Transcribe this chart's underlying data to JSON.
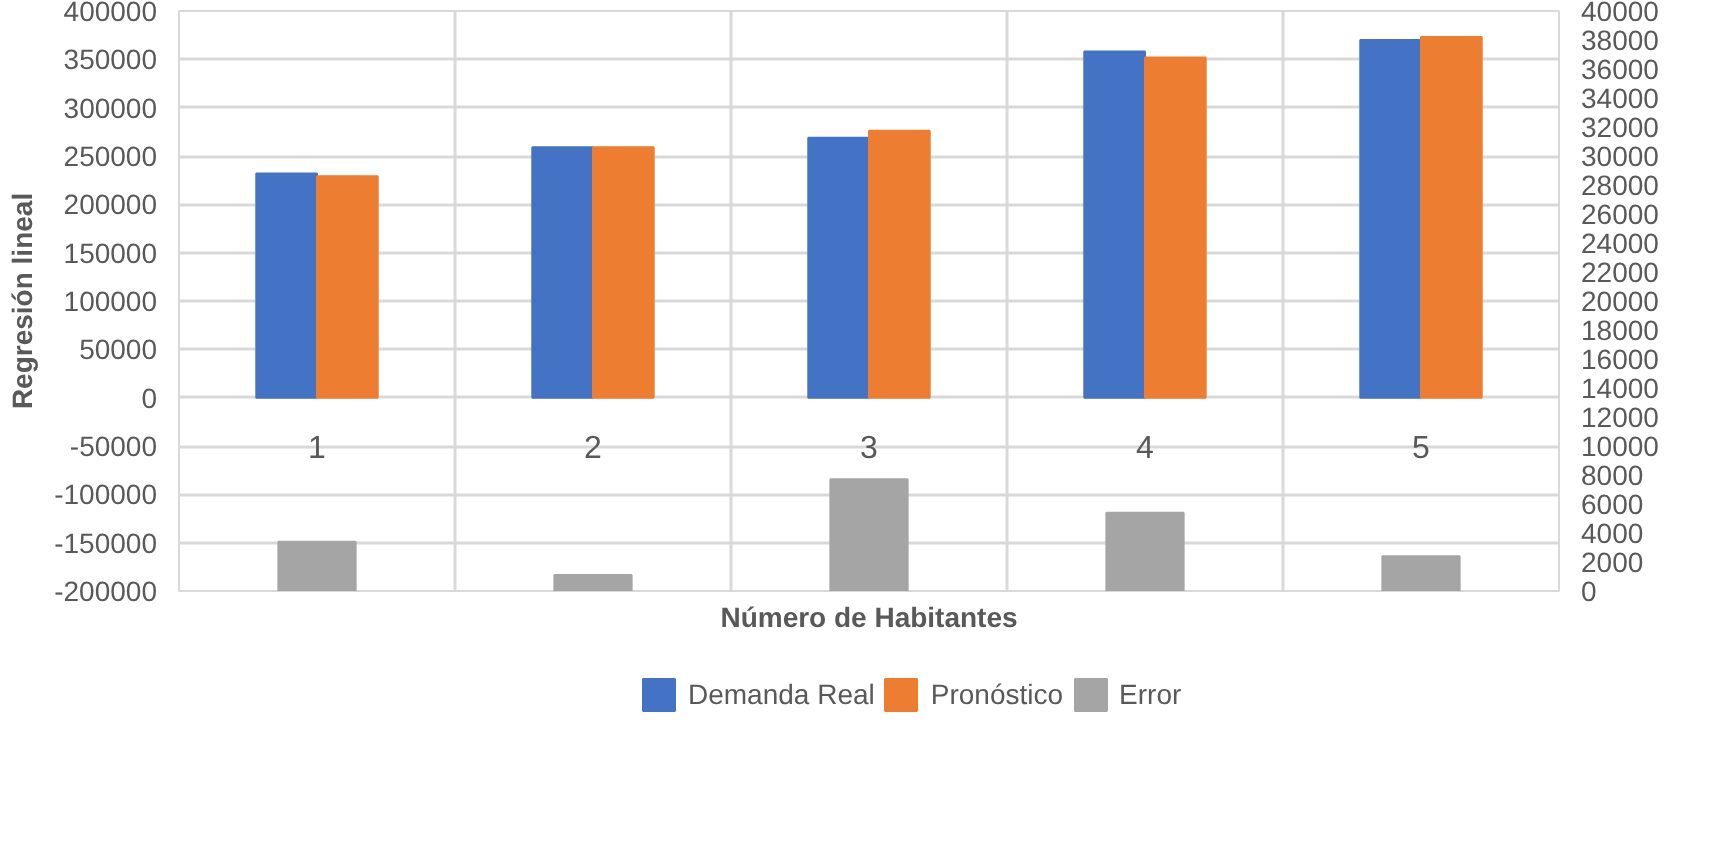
{
  "chart_data": {
    "type": "bar",
    "xlabel": "Número de Habitantes",
    "ylabel": "Regresión lineal",
    "categories": [
      "1",
      "2",
      "3",
      "4",
      "5"
    ],
    "series": [
      {
        "name": "Demanda Real",
        "color": "#4472c4",
        "values": [
          232000,
          259000,
          269000,
          358000,
          370000
        ]
      },
      {
        "name": "Pronóstico",
        "color": "#ed7d31",
        "values": [
          229000,
          259000,
          276000,
          352000,
          373000
        ]
      },
      {
        "name": "Error",
        "color": "#a5a5a5",
        "axis": "y2",
        "values": [
          3400,
          1100,
          7700,
          5400,
          2400
        ]
      }
    ],
    "ylim": [
      -200000,
      400000
    ],
    "yticks": [
      -200000,
      -150000,
      -100000,
      -50000,
      0,
      50000,
      100000,
      150000,
      200000,
      250000,
      300000,
      350000,
      400000
    ],
    "y2lim": [
      0,
      40000
    ],
    "y2ticks": [
      0,
      2000,
      4000,
      6000,
      8000,
      10000,
      12000,
      14000,
      16000,
      18000,
      20000,
      22000,
      24000,
      26000,
      28000,
      30000,
      32000,
      34000,
      36000,
      38000,
      40000
    ],
    "grid": true,
    "legend": "bottom"
  }
}
